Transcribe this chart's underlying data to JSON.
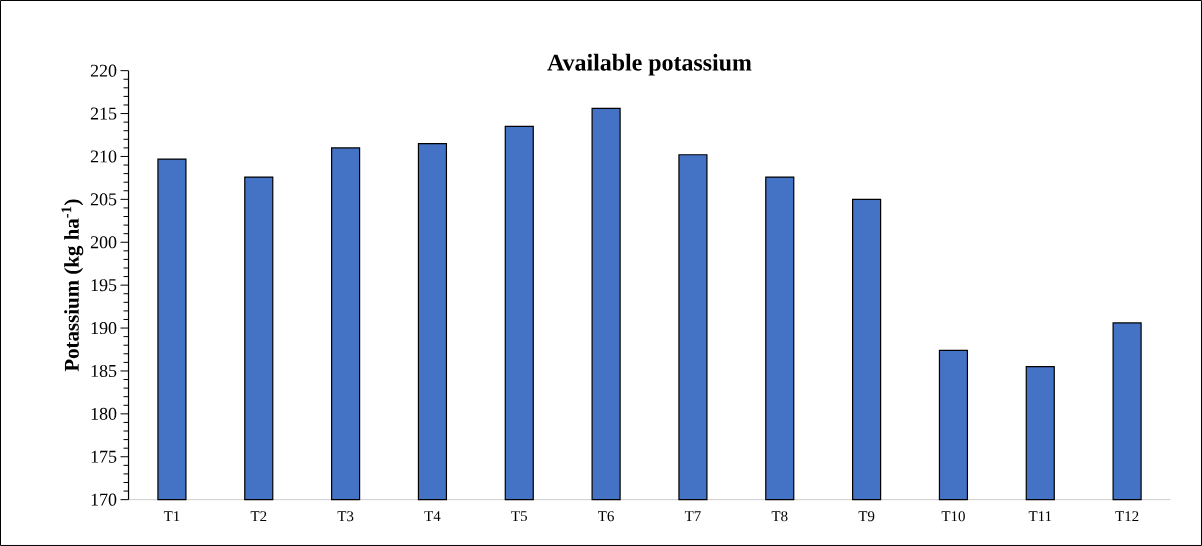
{
  "chart_data": {
    "type": "bar",
    "title": "**Available potassium**",
    "ylabel": "**Potassium (kg ha$^{-1}$)**",
    "categories": [
      "T1",
      "T2",
      "T3",
      "T4",
      "T5",
      "T6",
      "T7",
      "T8",
      "T9",
      "T10",
      "T11",
      "T12"
    ],
    "values": [
      209.7,
      207.6,
      211.0,
      211.5,
      213.5,
      215.6,
      210.2,
      207.6,
      205.0,
      187.4,
      185.5,
      190.6
    ],
    "color": "#4472c4",
    "ylim": [
      170,
      220
    ],
    "yticks": [
      170,
      175,
      180,
      185,
      190,
      195,
      200,
      205,
      210,
      215,
      220
    ]
  }
}
